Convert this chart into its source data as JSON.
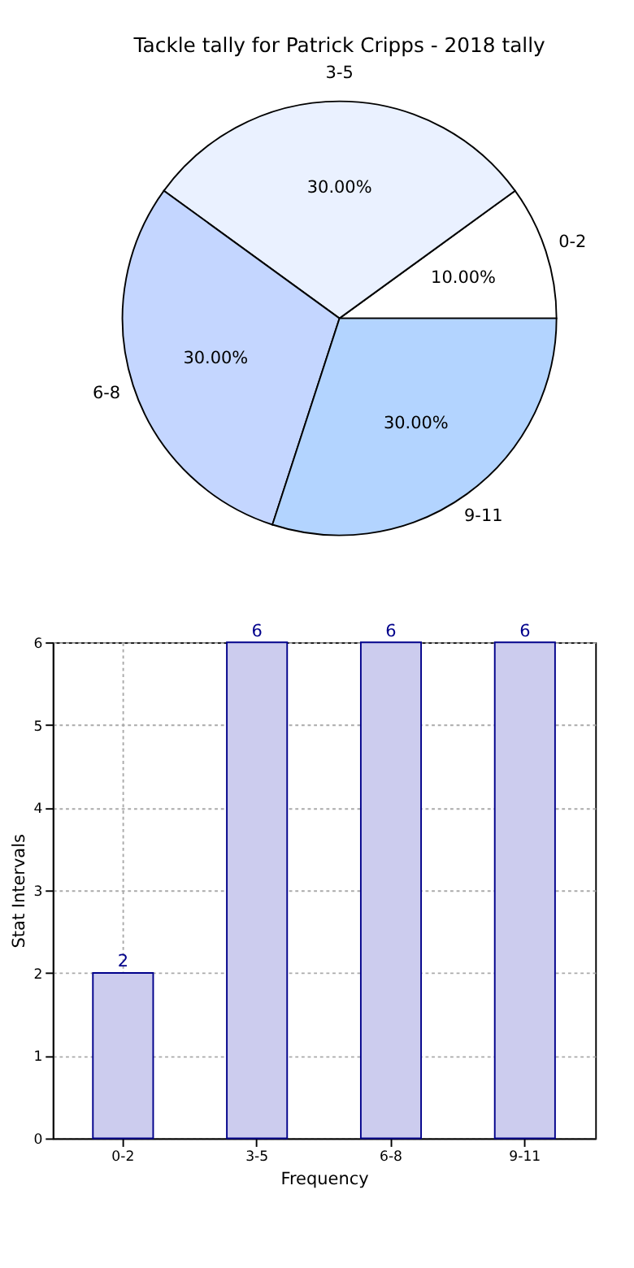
{
  "chart_data": [
    {
      "type": "pie",
      "title": "Tackle tally for Patrick Cripps - 2018 tally",
      "categories": [
        "0-2",
        "3-5",
        "6-8",
        "9-11"
      ],
      "values": [
        10,
        30,
        30,
        30
      ],
      "colors": [
        "#ffffff",
        "#eaf1ff",
        "#c4d6ff",
        "#b3d4ff"
      ],
      "value_labels": [
        "10.00%",
        "30.00%",
        "30.00%",
        "30.00%"
      ],
      "legend": false
    },
    {
      "type": "bar",
      "categories": [
        "0-2",
        "3-5",
        "6-8",
        "9-11"
      ],
      "series": [
        {
          "color": "#ccccee",
          "values": [
            2,
            6,
            6,
            6
          ]
        }
      ],
      "xlabel": "Frequency",
      "ylabel": "Stat Intervals",
      "ylim": [
        0,
        6
      ],
      "yticks": [
        0,
        1,
        2,
        3,
        4,
        5,
        6
      ],
      "grid": true,
      "data_labels": true
    }
  ]
}
